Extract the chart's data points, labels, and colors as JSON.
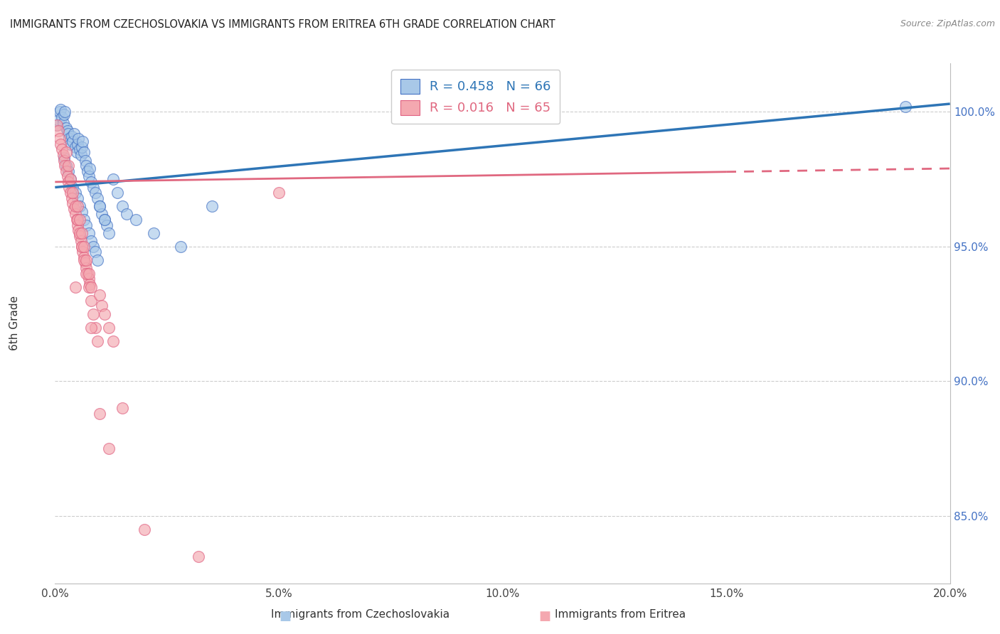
{
  "title": "IMMIGRANTS FROM CZECHOSLOVAKIA VS IMMIGRANTS FROM ERITREA 6TH GRADE CORRELATION CHART",
  "source": "Source: ZipAtlas.com",
  "xlabel_ticks": [
    "0.0%",
    "5.0%",
    "10.0%",
    "15.0%",
    "20.0%"
  ],
  "xlabel_tick_vals": [
    0.0,
    5.0,
    10.0,
    15.0,
    20.0
  ],
  "ylabel_ticks": [
    "85.0%",
    "90.0%",
    "95.0%",
    "100.0%"
  ],
  "ylabel_tick_vals": [
    85.0,
    90.0,
    95.0,
    100.0
  ],
  "xmin": 0.0,
  "xmax": 20.0,
  "ymin": 82.5,
  "ymax": 101.8,
  "blue_color": "#a8c8e8",
  "pink_color": "#f4a8b0",
  "blue_edge_color": "#4472c4",
  "pink_edge_color": "#e06080",
  "blue_line_color": "#2e75b6",
  "pink_line_color": "#e06880",
  "blue_R": 0.458,
  "blue_N": 66,
  "pink_R": 0.016,
  "pink_N": 65,
  "legend_label_blue": "Immigrants from Czechoslovakia",
  "legend_label_pink": "Immigrants from Eritrea",
  "ylabel": "6th Grade",
  "blue_line_x0": 0.0,
  "blue_line_y0": 97.2,
  "blue_line_x1": 20.0,
  "blue_line_y1": 100.3,
  "pink_line_x0": 0.0,
  "pink_line_y0": 97.4,
  "pink_line_x1": 20.0,
  "pink_line_y1": 97.9,
  "blue_scatter_x": [
    0.05,
    0.08,
    0.1,
    0.12,
    0.15,
    0.18,
    0.2,
    0.22,
    0.25,
    0.28,
    0.3,
    0.32,
    0.35,
    0.38,
    0.4,
    0.42,
    0.45,
    0.48,
    0.5,
    0.52,
    0.55,
    0.58,
    0.6,
    0.62,
    0.65,
    0.68,
    0.7,
    0.72,
    0.75,
    0.78,
    0.8,
    0.85,
    0.9,
    0.95,
    1.0,
    1.05,
    1.1,
    1.15,
    1.2,
    1.3,
    1.4,
    1.5,
    1.6,
    1.8,
    0.2,
    0.25,
    0.3,
    0.35,
    0.4,
    0.45,
    0.5,
    0.55,
    0.6,
    0.65,
    0.7,
    0.75,
    0.8,
    0.85,
    0.9,
    0.95,
    1.0,
    1.1,
    2.2,
    2.8,
    3.5,
    19.0
  ],
  "blue_scatter_y": [
    99.5,
    99.7,
    100.0,
    100.1,
    99.8,
    99.6,
    99.9,
    100.0,
    99.4,
    99.3,
    99.2,
    99.0,
    98.8,
    99.1,
    98.9,
    99.2,
    98.7,
    98.5,
    98.8,
    99.0,
    98.6,
    98.4,
    98.7,
    98.9,
    98.5,
    98.2,
    98.0,
    97.8,
    97.6,
    97.9,
    97.4,
    97.2,
    97.0,
    96.8,
    96.5,
    96.2,
    96.0,
    95.8,
    95.5,
    97.5,
    97.0,
    96.5,
    96.2,
    96.0,
    98.3,
    98.0,
    97.8,
    97.5,
    97.2,
    97.0,
    96.8,
    96.5,
    96.3,
    96.0,
    95.8,
    95.5,
    95.2,
    95.0,
    94.8,
    94.5,
    96.5,
    96.0,
    95.5,
    95.0,
    96.5,
    100.2
  ],
  "pink_scatter_x": [
    0.05,
    0.08,
    0.1,
    0.12,
    0.15,
    0.18,
    0.2,
    0.22,
    0.25,
    0.28,
    0.3,
    0.32,
    0.35,
    0.38,
    0.4,
    0.42,
    0.45,
    0.48,
    0.5,
    0.52,
    0.55,
    0.58,
    0.6,
    0.62,
    0.65,
    0.68,
    0.7,
    0.72,
    0.75,
    0.78,
    0.25,
    0.3,
    0.35,
    0.4,
    0.45,
    0.5,
    0.55,
    0.6,
    0.65,
    0.7,
    0.75,
    0.8,
    0.85,
    0.9,
    0.95,
    1.0,
    1.05,
    1.1,
    1.2,
    1.3,
    0.45,
    0.8,
    1.0,
    1.2,
    1.5,
    2.0,
    3.2,
    5.0,
    0.5,
    0.55,
    0.6,
    0.65,
    0.7,
    0.75,
    0.8
  ],
  "pink_scatter_y": [
    99.5,
    99.3,
    99.0,
    98.8,
    98.6,
    98.4,
    98.2,
    98.0,
    97.8,
    97.6,
    97.4,
    97.2,
    97.0,
    96.8,
    96.6,
    96.4,
    96.2,
    96.0,
    95.8,
    95.6,
    95.4,
    95.2,
    95.0,
    94.8,
    94.6,
    94.4,
    94.2,
    94.0,
    93.8,
    93.6,
    98.5,
    98.0,
    97.5,
    97.0,
    96.5,
    96.0,
    95.5,
    95.0,
    94.5,
    94.0,
    93.5,
    93.0,
    92.5,
    92.0,
    91.5,
    93.2,
    92.8,
    92.5,
    92.0,
    91.5,
    93.5,
    92.0,
    88.8,
    87.5,
    89.0,
    84.5,
    83.5,
    97.0,
    96.5,
    96.0,
    95.5,
    95.0,
    94.5,
    94.0,
    93.5
  ]
}
